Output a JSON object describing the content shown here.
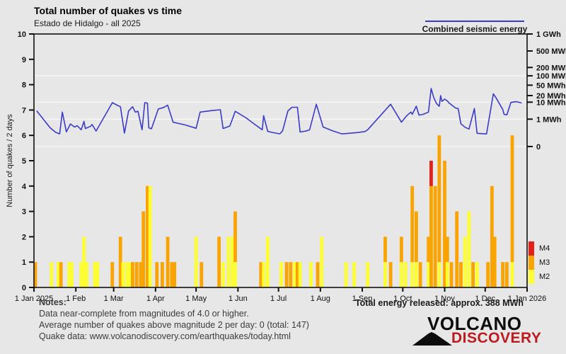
{
  "header": {
    "title": "Total number of quakes vs time",
    "subtitle": "Estado de Hidalgo - all 2025"
  },
  "energy_legend": {
    "label": "Combined seismic energy",
    "line_color": "#3b3bc8"
  },
  "magnitude_legend": [
    {
      "label": "M4",
      "color": "#e32119"
    },
    {
      "label": "M3",
      "color": "#f9a400"
    },
    {
      "label": "M2",
      "color": "#fdfd33"
    }
  ],
  "notes": {
    "heading": "Notes:",
    "line1": "Data near-complete from magnitudes of 4.0 or higher.",
    "line2": "Average number of quakes above magnitude 2 per day: 0 (total: 147)",
    "line3": "Quake data: www.volcanodiscovery.com/earthquakes/today.html"
  },
  "total_energy": "Total energy released: approx. 388 MWh",
  "logo": {
    "line1": "VOLCANO",
    "line2": "DISCOVERY"
  },
  "chart_data": {
    "type": "bar+line",
    "title": "Total number of quakes vs time",
    "subtitle": "Estado de Hidalgo - all 2025",
    "y_left": {
      "label": "Number of quakes / 2 days",
      "min": 0,
      "max": 10
    },
    "y_right": {
      "label": "Combined seismic energy",
      "scale": "log-energy (positions given in left-axis units)",
      "ticks": [
        {
          "label": "1 GWh",
          "pos": 10.0
        },
        {
          "label": "500 MWh",
          "pos": 9.33
        },
        {
          "label": "200 MWh",
          "pos": 8.68
        },
        {
          "label": "100 MWh",
          "pos": 8.35
        },
        {
          "label": "50 MWh",
          "pos": 7.98
        },
        {
          "label": "20 MWh",
          "pos": 7.57
        },
        {
          "label": "10 MWh",
          "pos": 7.31
        },
        {
          "label": "1 MWh",
          "pos": 6.64
        },
        {
          "label": "0",
          "pos": 5.56
        }
      ],
      "gridlines": [
        8.35,
        7.31,
        6.64,
        5.56
      ]
    },
    "x": {
      "range_days": 365,
      "ticks": [
        0,
        31,
        59,
        90,
        120,
        151,
        181,
        212,
        243,
        273,
        304,
        334,
        365
      ],
      "labels": [
        "1 Jan 2025",
        "1 Feb",
        "1 Mar",
        "1 Apr",
        "1 May",
        "1 Jun",
        "1 Jul",
        "1 Aug",
        "1 Sep",
        "1 Oct",
        "1 Nov",
        "1 Dec",
        "1 Jan 2026"
      ]
    },
    "bars_format": "[day_of_year, M2_count, M3_count, M4_count] per 2-day bin",
    "bars": [
      [
        1,
        0,
        1,
        0
      ],
      [
        13,
        1,
        0,
        0
      ],
      [
        18,
        1,
        0,
        0
      ],
      [
        20,
        0,
        1,
        0
      ],
      [
        26,
        1,
        0,
        0
      ],
      [
        28,
        1,
        0,
        0
      ],
      [
        35,
        1,
        0,
        0
      ],
      [
        37,
        2,
        0,
        0
      ],
      [
        39,
        1,
        0,
        0
      ],
      [
        45,
        1,
        0,
        0
      ],
      [
        47,
        1,
        0,
        0
      ],
      [
        58,
        0,
        1,
        0
      ],
      [
        64,
        0,
        2,
        0
      ],
      [
        66,
        1,
        0,
        0
      ],
      [
        69,
        1,
        0,
        0
      ],
      [
        71,
        1,
        0,
        0
      ],
      [
        73,
        0,
        1,
        0
      ],
      [
        76,
        0,
        1,
        0
      ],
      [
        79,
        0,
        1,
        0
      ],
      [
        81,
        0,
        3,
        0
      ],
      [
        84,
        0,
        4,
        0
      ],
      [
        86,
        4,
        0,
        0
      ],
      [
        91,
        0,
        1,
        0
      ],
      [
        95,
        0,
        1,
        0
      ],
      [
        99,
        0,
        2,
        0
      ],
      [
        102,
        0,
        1,
        0
      ],
      [
        104,
        0,
        1,
        0
      ],
      [
        120,
        2,
        0,
        0
      ],
      [
        124,
        0,
        1,
        0
      ],
      [
        137,
        0,
        2,
        0
      ],
      [
        140,
        1,
        0,
        0
      ],
      [
        144,
        2,
        0,
        0
      ],
      [
        147,
        2,
        0,
        0
      ],
      [
        149,
        1,
        2,
        0
      ],
      [
        168,
        0,
        1,
        0
      ],
      [
        170,
        1,
        0,
        0
      ],
      [
        173,
        2,
        0,
        0
      ],
      [
        183,
        1,
        0,
        0
      ],
      [
        187,
        0,
        1,
        0
      ],
      [
        190,
        0,
        1,
        0
      ],
      [
        193,
        1,
        0,
        0
      ],
      [
        195,
        0,
        1,
        0
      ],
      [
        197,
        1,
        0,
        0
      ],
      [
        205,
        1,
        0,
        0
      ],
      [
        210,
        0,
        1,
        0
      ],
      [
        213,
        2,
        0,
        0
      ],
      [
        231,
        1,
        0,
        0
      ],
      [
        237,
        1,
        0,
        0
      ],
      [
        247,
        1,
        0,
        0
      ],
      [
        260,
        1,
        1,
        0
      ],
      [
        264,
        0,
        1,
        0
      ],
      [
        272,
        1,
        1,
        0
      ],
      [
        275,
        1,
        0,
        0
      ],
      [
        280,
        1,
        3,
        0
      ],
      [
        283,
        1,
        2,
        0
      ],
      [
        286,
        0,
        1,
        0
      ],
      [
        292,
        1,
        1,
        0
      ],
      [
        294,
        0,
        4,
        1
      ],
      [
        297,
        0,
        4,
        0
      ],
      [
        300,
        1,
        5,
        0
      ],
      [
        304,
        0,
        5,
        0
      ],
      [
        306,
        1,
        1,
        0
      ],
      [
        309,
        0,
        1,
        0
      ],
      [
        313,
        0,
        3,
        0
      ],
      [
        316,
        0,
        1,
        0
      ],
      [
        319,
        2,
        0,
        0
      ],
      [
        322,
        3,
        0,
        0
      ],
      [
        325,
        0,
        1,
        0
      ],
      [
        328,
        1,
        0,
        0
      ],
      [
        336,
        0,
        1,
        0
      ],
      [
        339,
        0,
        4,
        0
      ],
      [
        341,
        0,
        2,
        0
      ],
      [
        347,
        0,
        1,
        0
      ],
      [
        350,
        0,
        1,
        0
      ],
      [
        354,
        1,
        5,
        0
      ]
    ],
    "line_format": "[day_of_year, energy_line_value_in_left_axis_units]",
    "line": [
      [
        2,
        6.97
      ],
      [
        12,
        6.3
      ],
      [
        16,
        6.12
      ],
      [
        19,
        6.06
      ],
      [
        21,
        6.92
      ],
      [
        24,
        6.14
      ],
      [
        27,
        6.45
      ],
      [
        30,
        6.33
      ],
      [
        32,
        6.38
      ],
      [
        35,
        6.22
      ],
      [
        37,
        6.55
      ],
      [
        38,
        6.27
      ],
      [
        42,
        6.36
      ],
      [
        43,
        6.43
      ],
      [
        46,
        6.17
      ],
      [
        58,
        7.29
      ],
      [
        62,
        7.18
      ],
      [
        64,
        7.13
      ],
      [
        67,
        6.09
      ],
      [
        70,
        6.96
      ],
      [
        73,
        7.13
      ],
      [
        75,
        6.92
      ],
      [
        77,
        6.95
      ],
      [
        80,
        6.22
      ],
      [
        82,
        7.29
      ],
      [
        84,
        7.27
      ],
      [
        85,
        6.3
      ],
      [
        87,
        6.26
      ],
      [
        92,
        7.04
      ],
      [
        96,
        7.1
      ],
      [
        99,
        7.19
      ],
      [
        103,
        6.52
      ],
      [
        112,
        6.41
      ],
      [
        120,
        6.28
      ],
      [
        123,
        6.92
      ],
      [
        132,
        6.98
      ],
      [
        138,
        7.01
      ],
      [
        140,
        6.27
      ],
      [
        145,
        6.37
      ],
      [
        149,
        6.95
      ],
      [
        157,
        6.69
      ],
      [
        164,
        6.41
      ],
      [
        169,
        6.22
      ],
      [
        170,
        6.78
      ],
      [
        173,
        6.16
      ],
      [
        176,
        6.12
      ],
      [
        182,
        6.06
      ],
      [
        184,
        6.18
      ],
      [
        188,
        6.97
      ],
      [
        191,
        7.11
      ],
      [
        195,
        7.11
      ],
      [
        197,
        6.13
      ],
      [
        202,
        6.18
      ],
      [
        204,
        6.22
      ],
      [
        209,
        7.23
      ],
      [
        214,
        6.33
      ],
      [
        221,
        6.18
      ],
      [
        228,
        6.06
      ],
      [
        233,
        6.08
      ],
      [
        239,
        6.11
      ],
      [
        245,
        6.15
      ],
      [
        247,
        6.22
      ],
      [
        264,
        7.23
      ],
      [
        272,
        6.52
      ],
      [
        276,
        6.78
      ],
      [
        279,
        6.92
      ],
      [
        280,
        6.83
      ],
      [
        283,
        7.15
      ],
      [
        285,
        6.8
      ],
      [
        288,
        6.83
      ],
      [
        292,
        6.92
      ],
      [
        294,
        7.85
      ],
      [
        296,
        7.48
      ],
      [
        298,
        7.25
      ],
      [
        300,
        7.15
      ],
      [
        301,
        7.57
      ],
      [
        302,
        7.34
      ],
      [
        304,
        7.43
      ],
      [
        306,
        7.36
      ],
      [
        307,
        7.29
      ],
      [
        312,
        7.08
      ],
      [
        314,
        7.06
      ],
      [
        316,
        6.46
      ],
      [
        319,
        6.32
      ],
      [
        322,
        6.25
      ],
      [
        326,
        7.06
      ],
      [
        328,
        6.08
      ],
      [
        334,
        6.06
      ],
      [
        335,
        6.06
      ],
      [
        340,
        7.64
      ],
      [
        342,
        7.48
      ],
      [
        347,
        7.02
      ],
      [
        348,
        6.83
      ],
      [
        350,
        6.81
      ],
      [
        353,
        7.3
      ],
      [
        357,
        7.33
      ],
      [
        361,
        7.28
      ]
    ],
    "colors": {
      "m2": "#fdfd33",
      "m3": "#f9a400",
      "m4": "#e32119",
      "line": "#3b3bc8",
      "grid": "#f7f7f7",
      "frame": "#111111"
    },
    "legend_position": "bottom-right",
    "grid": "horizontal gridlines at right-axis decades"
  }
}
